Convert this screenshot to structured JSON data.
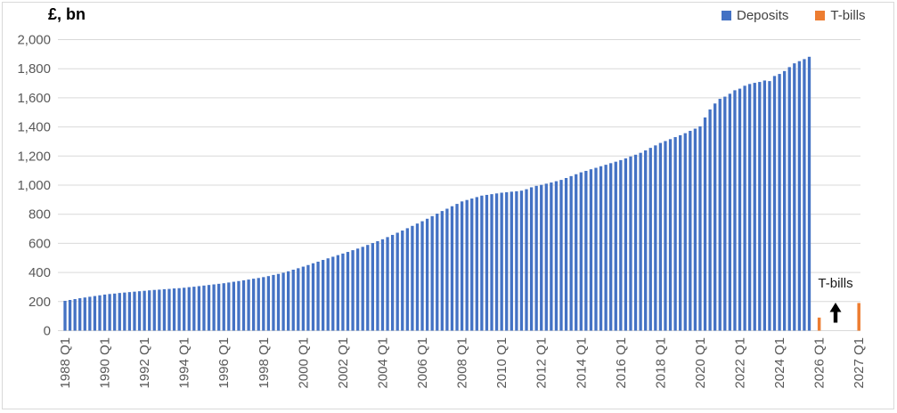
{
  "title": "£, bn",
  "legend": [
    {
      "label": "Deposits",
      "color": "#4472C4"
    },
    {
      "label": "T-bills",
      "color": "#ED7D31"
    }
  ],
  "annotation": {
    "text": "T-bills"
  },
  "chart_data": {
    "type": "bar",
    "title": "£, bn",
    "ylabel": "£, bn",
    "xlabel": "",
    "ylim": [
      0,
      2000
    ],
    "ytick_step": 200,
    "grid": "horizontal-only",
    "gridline_color": "#D9D9D9",
    "axis_label_color": "#595959",
    "legend_position": "top-right",
    "x_frequency": "quarterly",
    "x_start": "1988 Q1",
    "yticks": [
      "0",
      "200",
      "400",
      "600",
      "800",
      "1,000",
      "1,200",
      "1,400",
      "1,600",
      "1,800",
      "2,000"
    ],
    "xticks": [
      {
        "label": "1988 Q1",
        "xi": 0
      },
      {
        "label": "1990 Q1",
        "xi": 8
      },
      {
        "label": "1992 Q1",
        "xi": 16
      },
      {
        "label": "1994 Q1",
        "xi": 24
      },
      {
        "label": "1996 Q1",
        "xi": 32
      },
      {
        "label": "1998 Q1",
        "xi": 40
      },
      {
        "label": "2000 Q1",
        "xi": 48
      },
      {
        "label": "2002 Q1",
        "xi": 56
      },
      {
        "label": "2004 Q1",
        "xi": 64
      },
      {
        "label": "2006 Q1",
        "xi": 72
      },
      {
        "label": "2008 Q1",
        "xi": 80
      },
      {
        "label": "2010 Q1",
        "xi": 88
      },
      {
        "label": "2012 Q1",
        "xi": 96
      },
      {
        "label": "2014 Q1",
        "xi": 104
      },
      {
        "label": "2016 Q1",
        "xi": 112
      },
      {
        "label": "2018 Q1",
        "xi": 120
      },
      {
        "label": "2020 Q1",
        "xi": 128
      },
      {
        "label": "2022 Q1",
        "xi": 136
      },
      {
        "label": "2024 Q1",
        "xi": 144
      },
      {
        "label": "2026 Q1",
        "xi": 152
      },
      {
        "label": "2027 Q1",
        "xi": 160
      }
    ],
    "series": [
      {
        "name": "Deposits",
        "color": "#4472C4",
        "start": "1988 Q1",
        "end": "2025 Q3",
        "values": [
          205,
          211,
          217,
          223,
          228,
          233,
          238,
          243,
          248,
          252,
          255,
          259,
          262,
          265,
          268,
          271,
          274,
          277,
          280,
          282,
          285,
          287,
          290,
          292,
          295,
          299,
          302,
          306,
          310,
          314,
          318,
          322,
          326,
          331,
          336,
          341,
          346,
          351,
          357,
          362,
          368,
          375,
          383,
          390,
          398,
          408,
          419,
          429,
          440,
          451,
          463,
          474,
          486,
          497,
          508,
          519,
          530,
          541,
          553,
          564,
          576,
          589,
          602,
          615,
          628,
          643,
          658,
          673,
          688,
          704,
          720,
          736,
          752,
          769,
          787,
          804,
          822,
          838,
          855,
          871,
          888,
          898,
          908,
          918,
          928,
          933,
          938,
          943,
          948,
          951,
          955,
          958,
          962,
          972,
          985,
          995,
          1002,
          1010,
          1018,
          1027,
          1036,
          1049,
          1062,
          1075,
          1088,
          1098,
          1109,
          1119,
          1130,
          1140,
          1151,
          1161,
          1172,
          1184,
          1197,
          1209,
          1222,
          1239,
          1256,
          1273,
          1290,
          1303,
          1316,
          1330,
          1343,
          1357,
          1373,
          1388,
          1404,
          1465,
          1520,
          1561,
          1593,
          1608,
          1628,
          1652,
          1663,
          1683,
          1695,
          1703,
          1709,
          1719,
          1715,
          1750,
          1764,
          1784,
          1811,
          1837,
          1852,
          1866,
          1882
        ]
      },
      {
        "name": "T-bills",
        "color": "#ED7D31",
        "points": [
          {
            "x": "2026 Q1",
            "xi": 152,
            "value": 90
          },
          {
            "x": "2027 Q1",
            "xi": 160,
            "value": 190
          }
        ]
      }
    ],
    "annotation": {
      "text": "T-bills",
      "arrow": "up"
    }
  }
}
